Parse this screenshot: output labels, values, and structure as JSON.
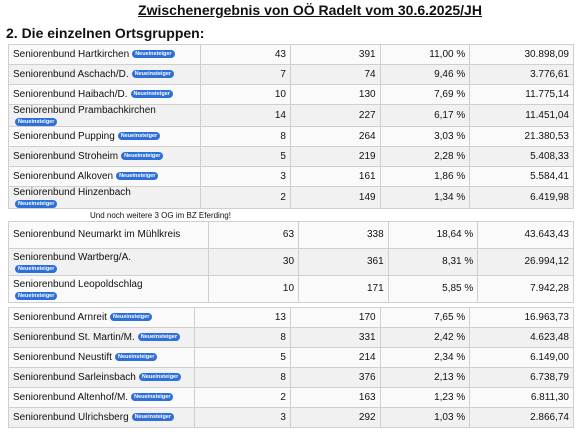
{
  "title": "Zwischenergebnis von OÖ Radelt vom 30.6.2025/JH",
  "subtitle": "2. Die einzelnen Ortsgruppen:",
  "badge_label": "Neueinsteiger",
  "note": "Und noch weitere 3 OG im BZ Eferding!",
  "section1": [
    {
      "name": "Seniorenbund Hartkirchen",
      "badge": true,
      "badge_below": false,
      "a": "43",
      "b": "391",
      "pct": "11,00 %",
      "total": "30.898,09"
    },
    {
      "name": "Seniorenbund Aschach/D.",
      "badge": true,
      "badge_below": false,
      "a": "7",
      "b": "74",
      "pct": "9,46 %",
      "total": "3.776,61"
    },
    {
      "name": "Seniorenbund Haibach/D.",
      "badge": true,
      "badge_below": false,
      "a": "10",
      "b": "130",
      "pct": "7,69 %",
      "total": "11.775,14"
    },
    {
      "name": "Seniorenbund Prambachkirchen",
      "badge": true,
      "badge_below": true,
      "a": "14",
      "b": "227",
      "pct": "6,17 %",
      "total": "11.451,04"
    },
    {
      "name": "Seniorenbund Pupping",
      "badge": true,
      "badge_below": false,
      "a": "8",
      "b": "264",
      "pct": "3,03 %",
      "total": "21.380,53"
    },
    {
      "name": "Seniorenbund Stroheim",
      "badge": true,
      "badge_below": false,
      "a": "5",
      "b": "219",
      "pct": "2,28 %",
      "total": "5.408,33"
    },
    {
      "name": "Seniorenbund Alkoven",
      "badge": true,
      "badge_below": false,
      "a": "3",
      "b": "161",
      "pct": "1,86 %",
      "total": "5.584,41"
    },
    {
      "name": "Seniorenbund Hinzenbach",
      "badge": true,
      "badge_below": true,
      "a": "2",
      "b": "149",
      "pct": "1,34 %",
      "total": "6.419,98"
    }
  ],
  "section2": [
    {
      "name": "Seniorenbund Neumarkt im Mühlkreis",
      "badge": false,
      "a": "63",
      "b": "338",
      "pct": "18,64 %",
      "total": "43.643,43"
    },
    {
      "name": "Seniorenbund Wartberg/A.",
      "badge": true,
      "a": "30",
      "b": "361",
      "pct": "8,31 %",
      "total": "26.994,12"
    },
    {
      "name": "Seniorenbund Leopoldschlag",
      "badge": true,
      "a": "10",
      "b": "171",
      "pct": "5,85 %",
      "total": "7.942,28"
    }
  ],
  "section3": [
    {
      "name": "Seniorenbund Arnreit",
      "badge": true,
      "a": "13",
      "b": "170",
      "pct": "7,65 %",
      "total": "16.963,73"
    },
    {
      "name": "Seniorenbund St. Martin/M.",
      "badge": true,
      "a": "8",
      "b": "331",
      "pct": "2,42 %",
      "total": "4.623,48"
    },
    {
      "name": "Seniorenbund Neustift",
      "badge": true,
      "a": "5",
      "b": "214",
      "pct": "2,34 %",
      "total": "6.149,00"
    },
    {
      "name": "Seniorenbund Sarleinsbach",
      "badge": true,
      "a": "8",
      "b": "376",
      "pct": "2,13 %",
      "total": "6.738,79"
    },
    {
      "name": "Seniorenbund Altenhof/M.",
      "badge": true,
      "a": "2",
      "b": "163",
      "pct": "1,23 %",
      "total": "6.811,30"
    },
    {
      "name": "Seniorenbund Ulrichsberg",
      "badge": true,
      "a": "3",
      "b": "292",
      "pct": "1,03 %",
      "total": "2.866,74"
    }
  ]
}
